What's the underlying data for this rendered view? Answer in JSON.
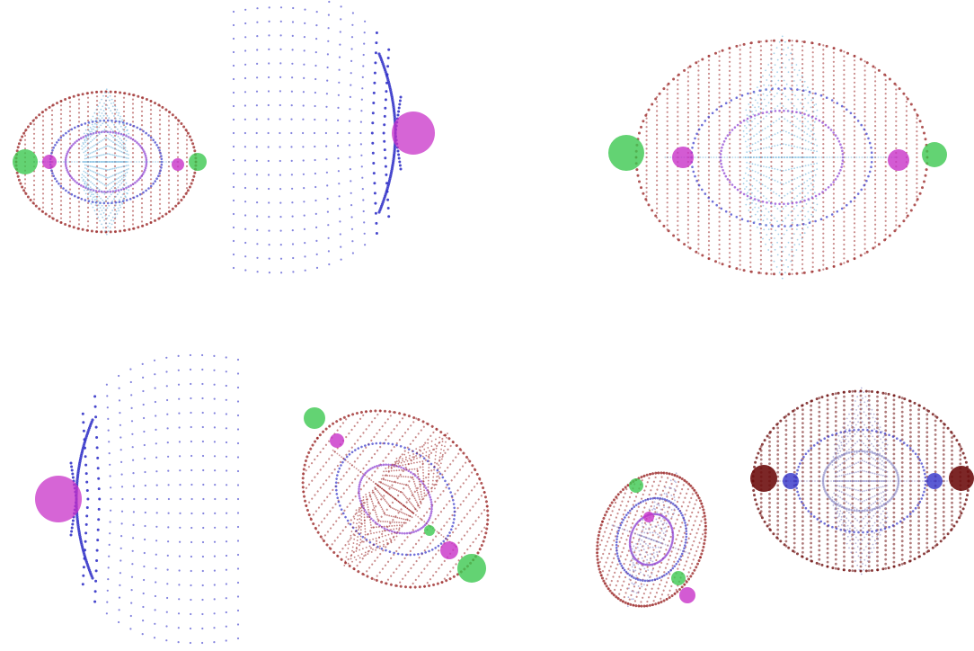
{
  "figure": {
    "background": "#ffffff",
    "palette": {
      "red": "#9c2a2a",
      "dark_red": "#6e0f0f",
      "blue": "#3232c8",
      "light_blue": "#6cb4dc",
      "purple": "#8a3ad2",
      "magenta": "#c832c8",
      "green": "#3cc850",
      "gray_blue": "#8a8ac8"
    },
    "panels": [
      {
        "id": "top-left-ellipsoid",
        "kind": "ellipsoid-field",
        "view": "side",
        "colors": [
          "red",
          "blue",
          "light_blue",
          "purple",
          "green",
          "magenta"
        ]
      },
      {
        "id": "top-left-half-dome",
        "kind": "half-dome",
        "view": "side-facing-left",
        "colors": [
          "blue",
          "magenta"
        ]
      },
      {
        "id": "top-right-ellipsoid",
        "kind": "ellipsoid-field",
        "view": "side-large",
        "colors": [
          "red",
          "blue",
          "light_blue",
          "purple",
          "green",
          "magenta"
        ]
      },
      {
        "id": "bottom-left-half-dome",
        "kind": "half-dome",
        "view": "side-facing-right",
        "colors": [
          "blue",
          "magenta"
        ]
      },
      {
        "id": "bottom-middle-tilted",
        "kind": "tilted-ellipsoid",
        "view": "oblique",
        "colors": [
          "red",
          "blue",
          "purple",
          "green",
          "magenta"
        ]
      },
      {
        "id": "bottom-right-small-tilted",
        "kind": "tilted-ellipsoid",
        "view": "oblique-small",
        "colors": [
          "red",
          "blue",
          "purple",
          "green",
          "magenta"
        ]
      },
      {
        "id": "bottom-right-dark",
        "kind": "ellipsoid-field",
        "view": "side-dark",
        "colors": [
          "dark_red",
          "blue",
          "gray_blue"
        ]
      }
    ]
  }
}
